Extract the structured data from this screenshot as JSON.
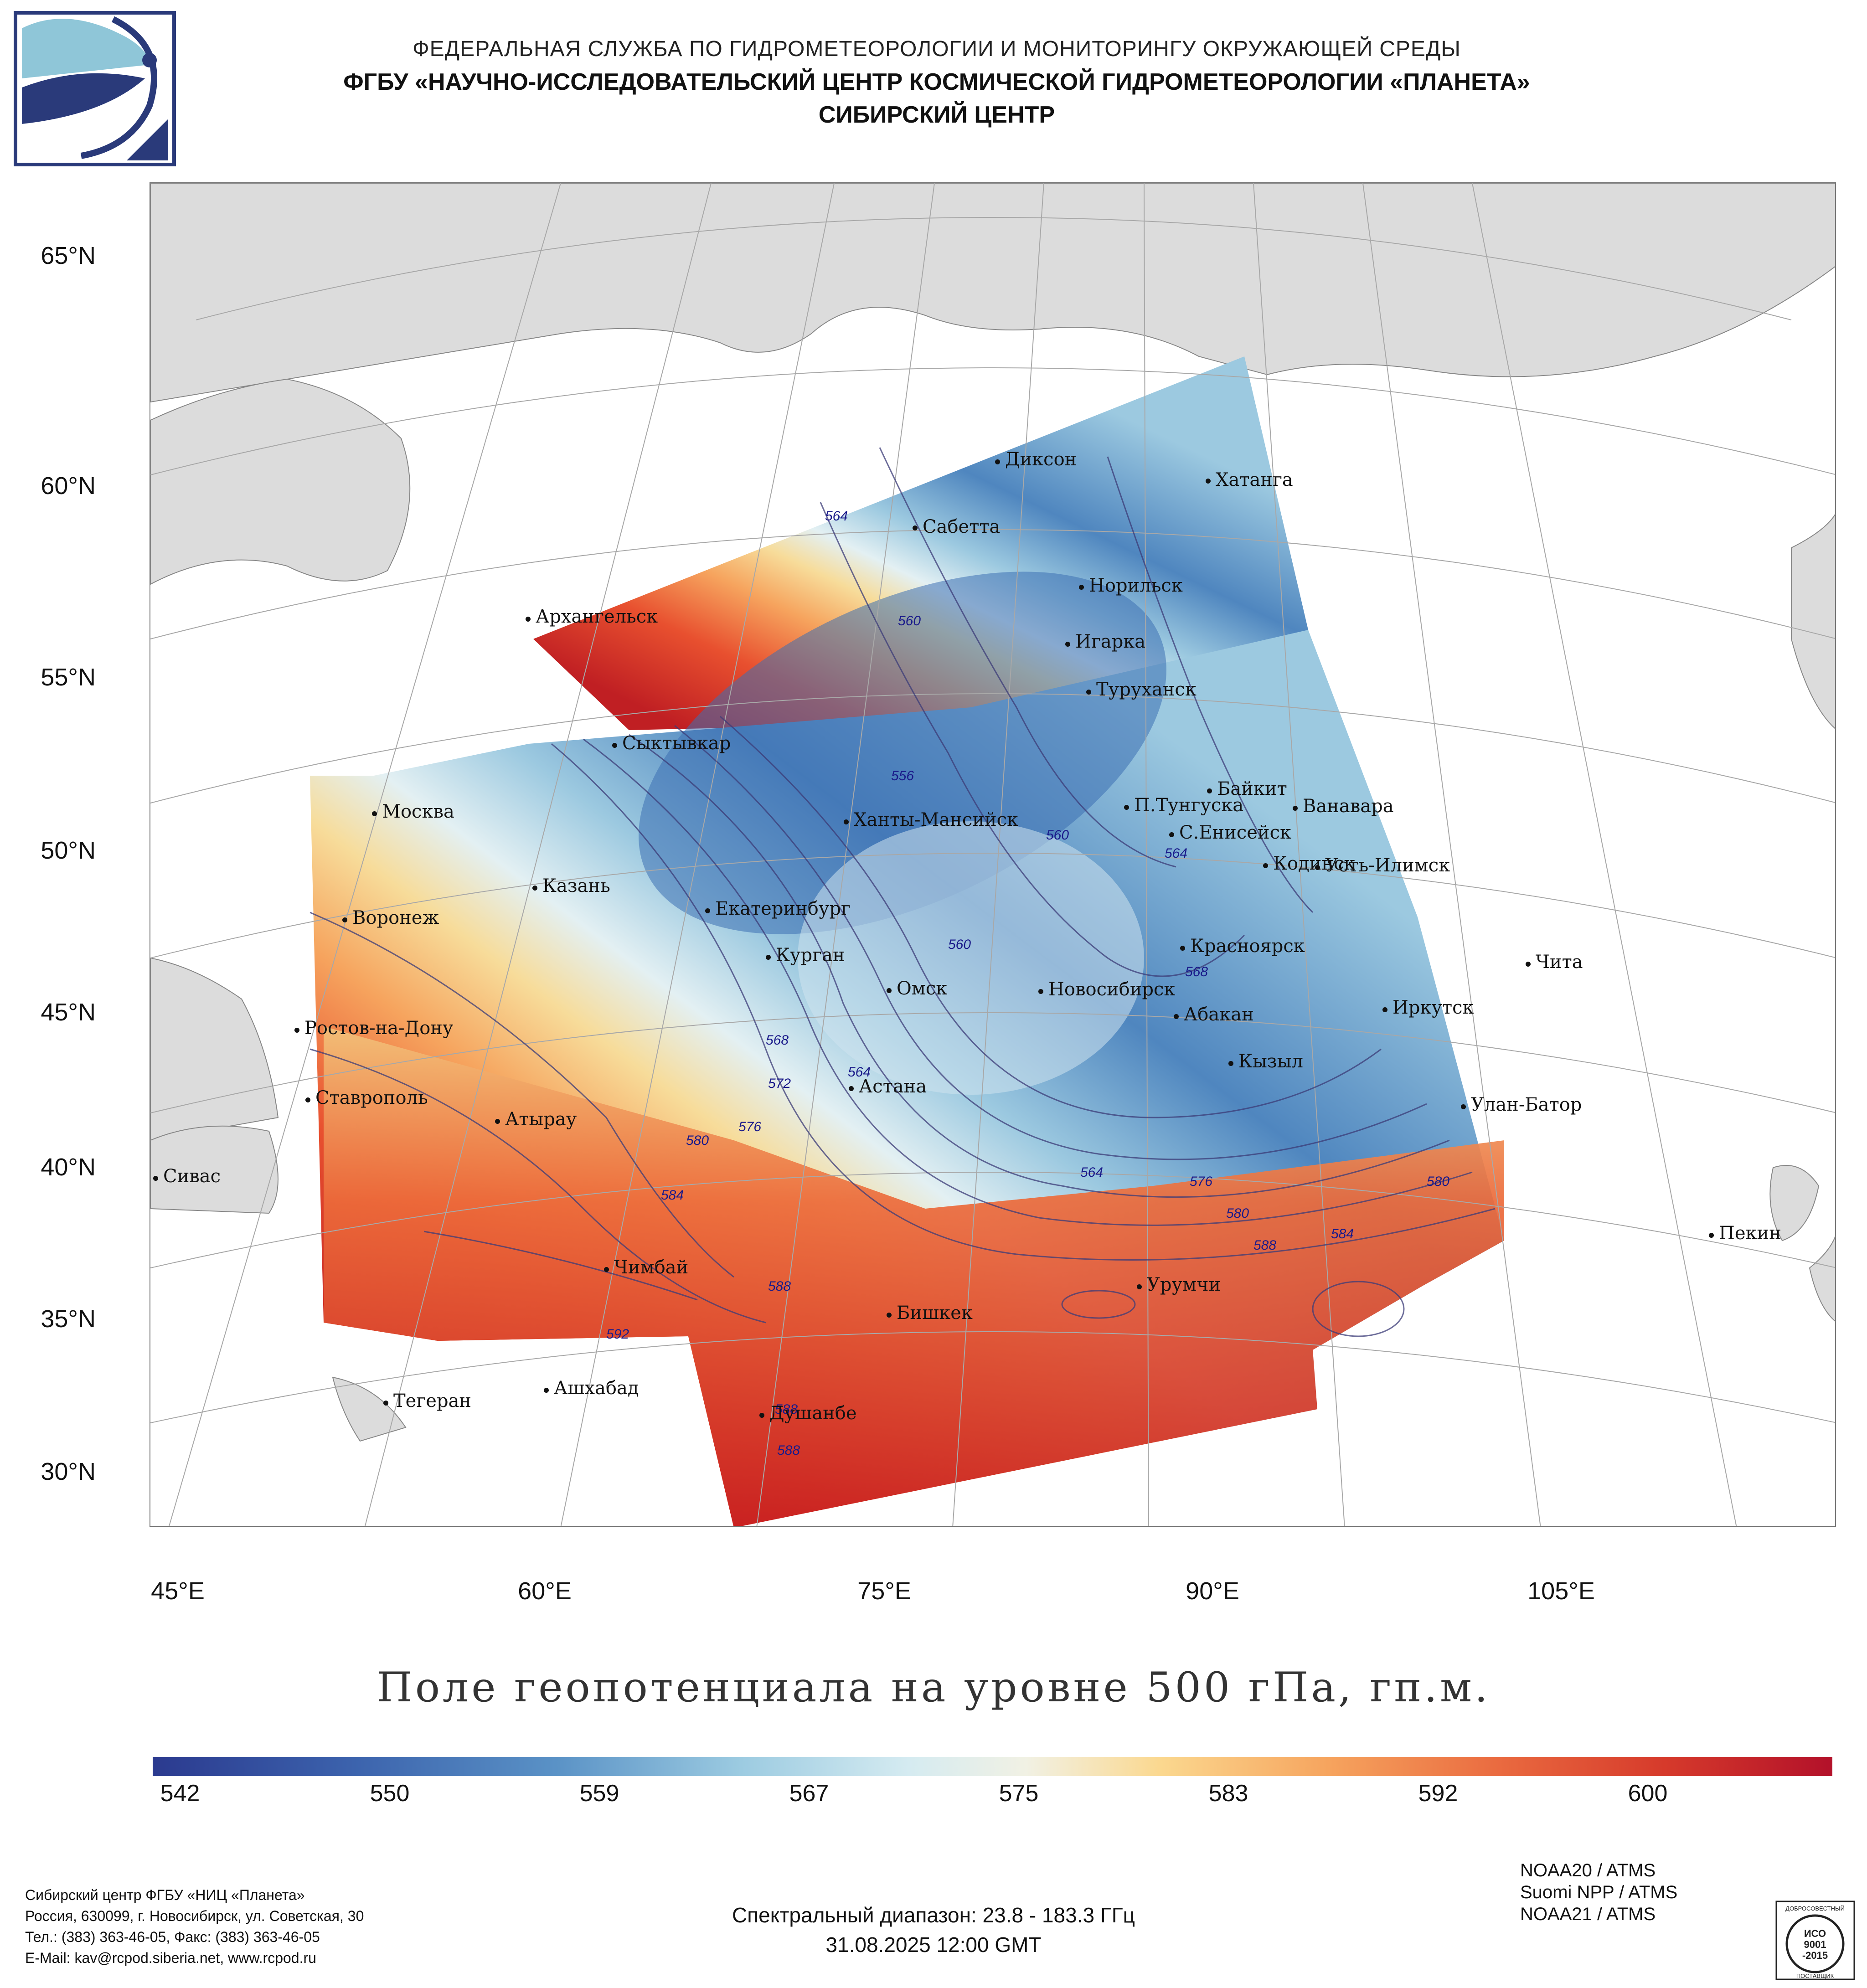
{
  "header": {
    "line1": "ФЕДЕРАЛЬНАЯ СЛУЖБА ПО ГИДРОМЕТЕОРОЛОГИИ И МОНИТОРИНГУ ОКРУЖАЮЩЕЙ СРЕДЫ",
    "line2": "ФГБУ «НАУЧНО-ИССЛЕДОВАТЕЛЬСКИЙ ЦЕНТР КОСМИЧЕСКОЙ ГИДРОМЕТЕОРОЛОГИИ «ПЛАНЕТА»",
    "line3": "СИБИРСКИЙ ЦЕНТР"
  },
  "map": {
    "lat_labels": [
      "65°N",
      "60°N",
      "55°N",
      "50°N",
      "45°N",
      "40°N",
      "35°N",
      "30°N"
    ],
    "lon_labels": [
      "45°E",
      "60°E",
      "75°E",
      "90°E",
      "105°E"
    ],
    "cities": [
      {
        "name": "Диксон"
      },
      {
        "name": "Хатанга"
      },
      {
        "name": "Сабетта"
      },
      {
        "name": "Норильск"
      },
      {
        "name": "Архангельск"
      },
      {
        "name": "Игарка"
      },
      {
        "name": "Туруханск"
      },
      {
        "name": "Сыктывкар"
      },
      {
        "name": "Байкит"
      },
      {
        "name": "П.Тунгуска"
      },
      {
        "name": "Ванавара"
      },
      {
        "name": "Москва"
      },
      {
        "name": "Ханты-Мансийск"
      },
      {
        "name": "С.Енисейск"
      },
      {
        "name": "Казань"
      },
      {
        "name": "Кодинск"
      },
      {
        "name": "Усть-Илимск"
      },
      {
        "name": "Екатеринбург"
      },
      {
        "name": "Воронеж"
      },
      {
        "name": "Красноярск"
      },
      {
        "name": "Курган"
      },
      {
        "name": "Чита"
      },
      {
        "name": "Омск"
      },
      {
        "name": "Новосибирск"
      },
      {
        "name": "Иркутск"
      },
      {
        "name": "Ростов-на-Дону"
      },
      {
        "name": "Абакан"
      },
      {
        "name": "Кызыл"
      },
      {
        "name": "Астана"
      },
      {
        "name": "Ставрополь"
      },
      {
        "name": "Улан-Батор"
      },
      {
        "name": "Атырау"
      },
      {
        "name": "Сивас"
      },
      {
        "name": "Пекин"
      },
      {
        "name": "Чимбай"
      },
      {
        "name": "Урумчи"
      },
      {
        "name": "Бишкек"
      },
      {
        "name": "Ашхабад"
      },
      {
        "name": "Тегеран"
      },
      {
        "name": "Душанбе"
      }
    ],
    "contour_labels": [
      "564",
      "560",
      "556",
      "560",
      "560",
      "564",
      "568",
      "568",
      "572",
      "576",
      "564",
      "580",
      "584",
      "576",
      "580",
      "580",
      "584",
      "588",
      "588",
      "592",
      "564",
      "588",
      "588"
    ]
  },
  "title": "Поле геопотенциала на уровне 500 гПа, гп.м.",
  "colorbar": {
    "ticks": [
      "542",
      "550",
      "559",
      "567",
      "575",
      "583",
      "592",
      "600"
    ]
  },
  "footer": {
    "org": [
      "Сибирский центр ФГБУ «НИЦ «Планета»",
      "Россия, 630099, г. Новосибирск, ул. Советская, 30",
      "Тел.: (383) 363-46-05, Факс: (383) 363-46-05",
      "E-Mail: kav@rcpod.siberia.net, www.rcpod.ru"
    ],
    "spectral": "Спектральный диапазон: 23.8 - 183.3 ГГц",
    "datetime": "31.08.2025 12:00 GMT",
    "sensors": [
      "NOAA20 / ATMS",
      "Suomi NPP / ATMS",
      "NOAA21 / ATMS"
    ],
    "iso": {
      "top": "ДОБРОСОВЕСТНЫЙ",
      "mid1": "ИСО",
      "mid2": "9001",
      "mid3": "-2015",
      "bottom": "ПОСТАВЩИК"
    }
  },
  "colors": {
    "land": "#dcdcdc",
    "cold": "#2f57a6",
    "mid": "#e9f1f3",
    "warm": "#f28a4a",
    "hot": "#c01f23"
  }
}
